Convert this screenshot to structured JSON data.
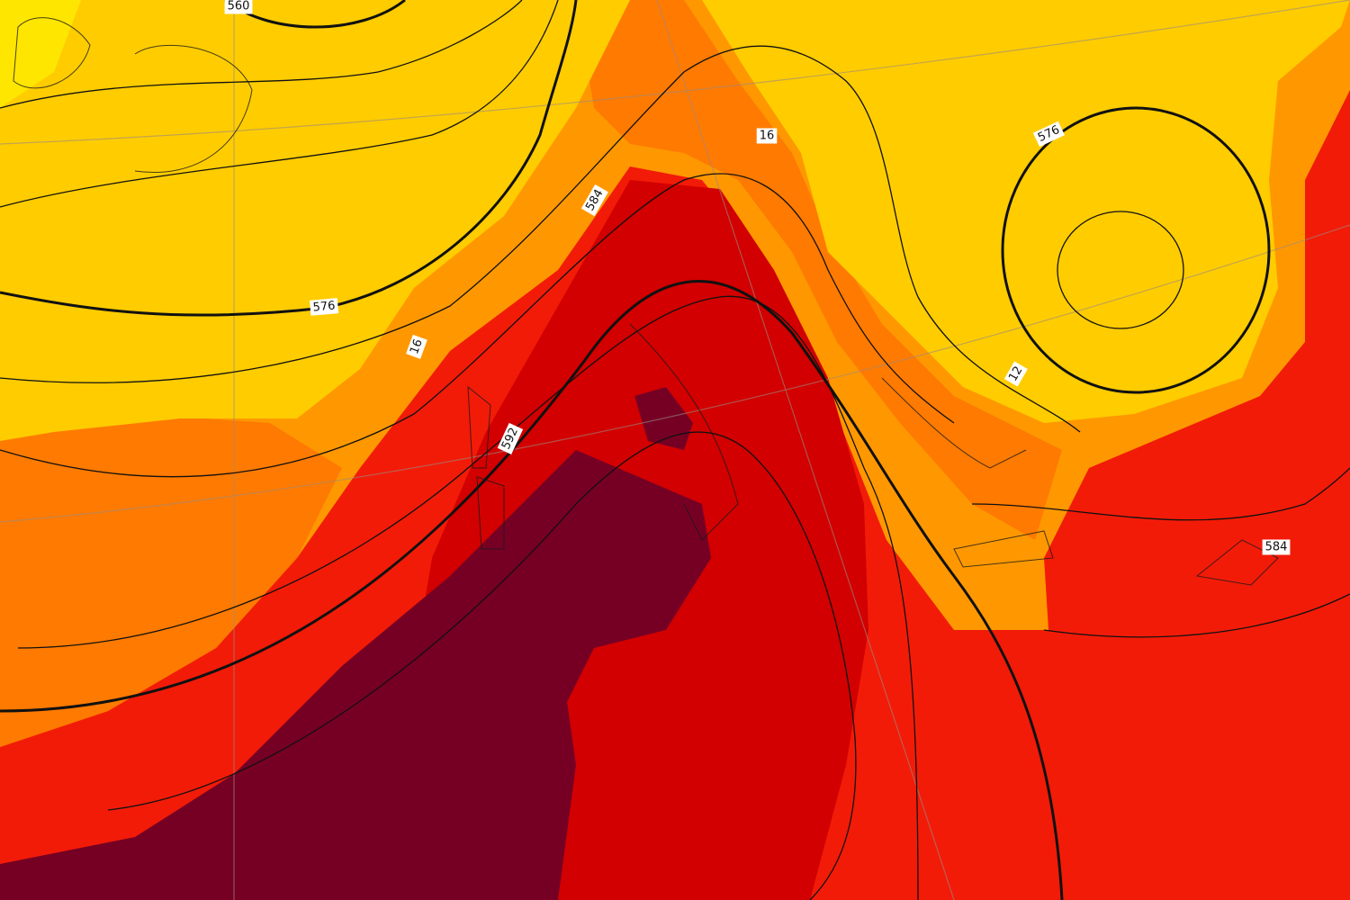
{
  "map": {
    "contour_labels": [
      "560",
      "576",
      "584",
      "592",
      "16",
      "12",
      "16",
      "576",
      "584"
    ]
  }
}
